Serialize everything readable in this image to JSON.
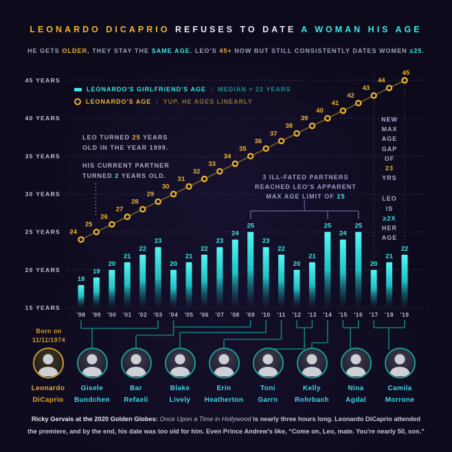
{
  "colors": {
    "gold": "#f0b62f",
    "cyan": "#3ce9e4",
    "bar_top": "#55f6f3",
    "line": "#7a641c",
    "marker": "#f5bb2e",
    "connector": "#11807c",
    "grid": "#30304c",
    "background": "#0d0a1c",
    "axis_text": "#c3c6da",
    "bracket": "#565c86"
  },
  "title": {
    "segments": [
      {
        "t": "LEONARDO DICAPRIO ",
        "c": "gold"
      },
      {
        "t": "REFUSES TO DATE ",
        "c": "white"
      },
      {
        "t": "A WOMAN HIS AGE",
        "c": "cyan"
      }
    ]
  },
  "subtitle": {
    "segments": [
      {
        "t": "HE GETS "
      },
      {
        "t": "OLDER",
        "c": "gold"
      },
      {
        "t": ", THEY STAY THE "
      },
      {
        "t": "SAME AGE",
        "c": "cyan"
      },
      {
        "t": ". LEO'S "
      },
      {
        "t": "45+",
        "c": "gold"
      },
      {
        "t": " NOW BUT STILL CONSISTENTLY DATES WOMEN "
      },
      {
        "t": "≤25",
        "c": "cyan"
      },
      {
        "t": "."
      }
    ]
  },
  "legend": {
    "girlfriend": {
      "label": "LEONARDO'S GIRLFRIEND'S AGE",
      "divider": "|",
      "note": "MEDIAN = 22 YEARS"
    },
    "leo": {
      "label": "LEONARDO'S AGE",
      "divider": "|",
      "note": "YUP, HE AGES LINEARLY"
    }
  },
  "chart_data": {
    "type": "bar+line",
    "categories": [
      "'98",
      "'99",
      "'00",
      "'01",
      "'02",
      "'03",
      "'04",
      "'05",
      "'06",
      "'07",
      "'08",
      "'09",
      "'10",
      "'11",
      "'12",
      "'13",
      "'14",
      "'15",
      "'16",
      "'17",
      "'18",
      "'19"
    ],
    "series": [
      {
        "name": "LEONARDO'S GIRLFRIEND'S AGE",
        "type": "bar",
        "values": [
          18,
          19,
          20,
          21,
          22,
          23,
          20,
          21,
          22,
          23,
          24,
          25,
          23,
          22,
          20,
          21,
          25,
          24,
          25,
          20,
          21,
          22
        ]
      },
      {
        "name": "LEONARDO'S AGE",
        "type": "line",
        "values": [
          24,
          25,
          26,
          27,
          28,
          29,
          30,
          31,
          32,
          33,
          34,
          35,
          36,
          37,
          38,
          39,
          40,
          41,
          42,
          43,
          44,
          45
        ]
      }
    ],
    "yticks": [
      {
        "v": 15,
        "label": "15 YEARS"
      },
      {
        "v": 20,
        "label": "20 YEARS"
      },
      {
        "v": 25,
        "label": "25 YEARS"
      },
      {
        "v": 30,
        "label": "30 YEARS"
      },
      {
        "v": 35,
        "label": "35 YEARS"
      },
      {
        "v": 40,
        "label": "40 YEARS"
      },
      {
        "v": 45,
        "label": "45 YEARS"
      }
    ],
    "ylim": [
      15,
      46
    ],
    "grid": "dashed-horizontal",
    "legend_position": "top-left",
    "median_girlfriend_age": 22
  },
  "annotations": {
    "leo_turned": {
      "lines": [
        [
          {
            "t": "LEO TURNED "
          },
          {
            "t": "25",
            "c": "gold"
          },
          {
            "t": " YEARS"
          }
        ],
        [
          {
            "t": "OLD IN THE YEAR 1999."
          }
        ]
      ]
    },
    "partner_turned": {
      "lines": [
        [
          {
            "t": "HIS CURRENT PARTNER"
          }
        ],
        [
          {
            "t": "TURNED "
          },
          {
            "t": "2",
            "c": "cyan"
          },
          {
            "t": " YEARS OLD."
          }
        ]
      ],
      "pointer_year": "'99"
    },
    "max_age": {
      "lines": [
        [
          {
            "t": "3 ILL-FATED PARTNERS"
          }
        ],
        [
          {
            "t": "REACHED LEO'S APPARENT"
          }
        ],
        [
          {
            "t": "MAX AGE LIMIT OF "
          },
          {
            "t": "25",
            "c": "cyan"
          }
        ]
      ],
      "target_years": [
        "'09",
        "'14",
        "'16"
      ]
    },
    "gap": {
      "words": [
        {
          "t": "NEW"
        },
        {
          "t": "MAX"
        },
        {
          "t": "AGE"
        },
        {
          "t": "GAP"
        },
        {
          "t": "OF"
        },
        {
          "t": "23",
          "c": "gold"
        },
        {
          "t": "YRS"
        },
        {
          "t": ""
        },
        {
          "t": "LEO"
        },
        {
          "t": "IS"
        },
        {
          "t": "≥2X",
          "c": "cyan"
        },
        {
          "t": "HER"
        },
        {
          "t": "AGE"
        }
      ],
      "boundary_years": [
        "'17",
        "'19"
      ]
    }
  },
  "born_on": {
    "line1": "Born on",
    "line2": "11/11/1974"
  },
  "people": [
    {
      "first": "Leonardo",
      "last": "DiCaprio",
      "accent": "gold"
    },
    {
      "first": "Gisele",
      "last": "Bundchen",
      "from": "'98",
      "to": "'03"
    },
    {
      "first": "Bar",
      "last": "Refaeli",
      "from": "'04",
      "to": "'09"
    },
    {
      "first": "Blake",
      "last": "Lively",
      "from": "'10",
      "to": "'10"
    },
    {
      "first": "Erin",
      "last": "Heatherton",
      "from": "'11",
      "to": "'11"
    },
    {
      "first": "Toni",
      "last": "Garrn",
      "from": "'12",
      "to": "'13"
    },
    {
      "first": "Kelly",
      "last": "Rohrbach",
      "from": "'14",
      "to": "'14"
    },
    {
      "first": "Nina",
      "last": "Agdal",
      "from": "'15",
      "to": "'16"
    },
    {
      "first": "Camila",
      "last": "Morrone",
      "from": "'17",
      "to": "'19"
    }
  ],
  "footer": {
    "lines": [
      [
        {
          "t": "Ricky Gervais at the 2020 Golden Globes:",
          "c": "fb"
        },
        {
          "t": "  "
        },
        {
          "t": "Once Upon a Time in Hollywood",
          "c": "it"
        },
        {
          "t": " is nearly three hours long. Leonardo DiCaprio attended"
        }
      ],
      [
        {
          "t": "the premiere, and by the end, his date was too old for him.  Even Prince Andrew's like, “Come on, Leo, mate. You're nearly 50, son.”"
        }
      ]
    ]
  }
}
